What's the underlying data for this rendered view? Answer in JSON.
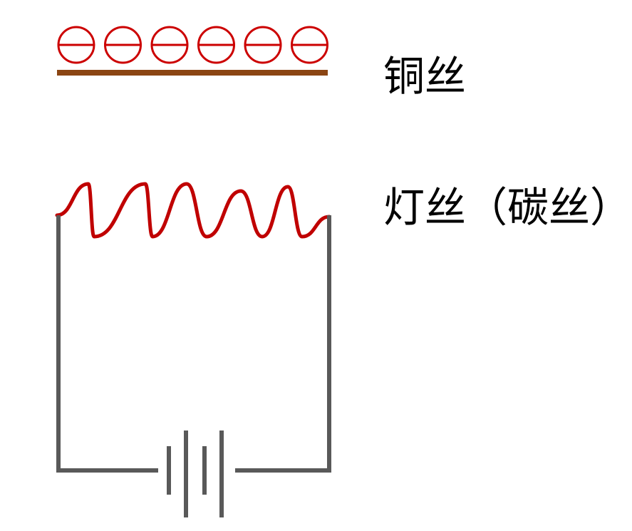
{
  "labels": {
    "copper_wire": "铜丝",
    "filament": "灯丝（碳丝）"
  },
  "electrons": {
    "count": 6,
    "charge_symbol": "minus"
  },
  "colors": {
    "electron": "#cc0000",
    "copper_wire": "#8b4513",
    "filament": "#c00000",
    "circuit_wire": "#595959"
  }
}
